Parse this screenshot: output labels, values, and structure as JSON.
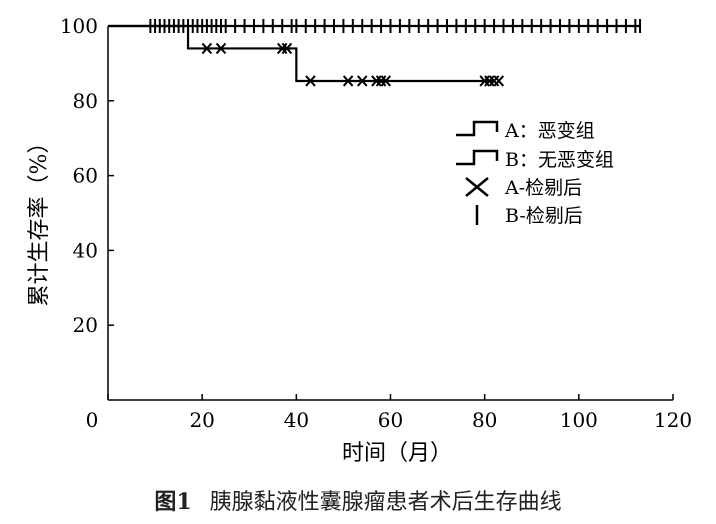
{
  "chart_data": {
    "type": "line",
    "subtype": "kaplan-meier step",
    "xlabel": "时间（月）",
    "ylabel": "累计生存率（%）",
    "xlim": [
      0,
      120
    ],
    "ylim": [
      0,
      100
    ],
    "xticks": [
      0,
      20,
      40,
      60,
      80,
      100,
      120
    ],
    "yticks": [
      20,
      40,
      60,
      80,
      100
    ],
    "grid": false,
    "legend_position": "right",
    "series": [
      {
        "name": "A：恶变组",
        "steps": [
          [
            0,
            100
          ],
          [
            17,
            100
          ],
          [
            17,
            94
          ],
          [
            40,
            94
          ],
          [
            40,
            85.3
          ],
          [
            82,
            85.3
          ]
        ],
        "censored_name": "A-检剔后",
        "censored": [
          21,
          24,
          37,
          38,
          43,
          51,
          54,
          57,
          58,
          59,
          80,
          81,
          82,
          83
        ]
      },
      {
        "name": "B：无恶变组",
        "steps": [
          [
            0,
            100
          ],
          [
            113,
            100
          ]
        ],
        "censored_name": "B-检剔后",
        "censored": [
          9,
          10,
          11,
          12,
          13,
          14,
          15,
          16,
          17,
          18,
          19,
          20,
          21,
          22,
          23,
          24,
          25,
          27,
          29,
          31,
          33,
          35,
          37,
          39,
          40,
          42,
          44,
          46,
          48,
          50,
          52,
          54,
          56,
          58,
          60,
          62,
          64,
          66,
          68,
          70,
          72,
          74,
          76,
          78,
          80,
          82,
          84,
          86,
          88,
          90,
          92,
          94,
          96,
          98,
          100,
          102,
          104,
          106,
          108,
          110,
          112,
          113
        ]
      }
    ]
  },
  "caption": {
    "figure_label": "图1",
    "text": "胰腺黏液性囊腺瘤患者术后生存曲线"
  }
}
